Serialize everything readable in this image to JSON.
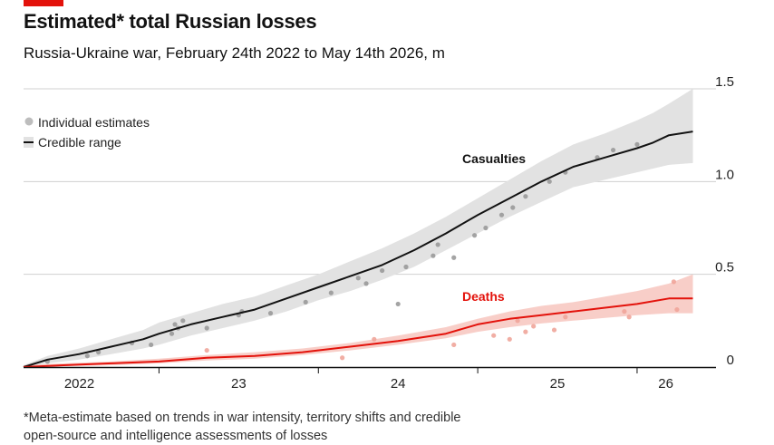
{
  "header": {
    "title": "Estimated* total Russian losses",
    "subtitle": "Russia-Ukraine war, February 24th 2022 to May 14th 2026, m"
  },
  "footnote": "*Meta-estimate based on trends in war intensity, territory shifts and credible open-source and intelligence assessments of losses",
  "colors": {
    "accent": "#e3120b",
    "casualties": "#121212",
    "deaths": "#e3120b",
    "casualties_band": "#e2e2e2",
    "deaths_band": "#f7c6be",
    "estimate_dot": "#9a9a9a",
    "deaths_dot": "#f0a59a"
  },
  "legend": {
    "estimates": "Individual estimates",
    "range": "Credible range"
  },
  "chart_data": {
    "type": "line",
    "title": "Estimated* total Russian losses",
    "subtitle": "Russia-Ukraine war, February 24th 2022 to May 14th 2026, m",
    "x_unit": "year",
    "xlim": [
      2022.15,
      2026.37
    ],
    "ylim": [
      0,
      1.5
    ],
    "y_ticks": [
      "0",
      "0.5",
      "1.0",
      "1.5"
    ],
    "y_tick_values": [
      0,
      0.5,
      1.0,
      1.5
    ],
    "y_axis_side": "right",
    "x_ticks": [
      "2022",
      "23",
      "24",
      "25",
      "26"
    ],
    "x_tick_values": [
      2022.5,
      2023.5,
      2024.5,
      2025.5,
      2026.18
    ],
    "grid": "horizontal",
    "legend_position": "top-left",
    "series": [
      {
        "name": "Casualties",
        "x": [
          2022.15,
          2022.3,
          2022.5,
          2022.7,
          2022.9,
          2023.0,
          2023.2,
          2023.4,
          2023.6,
          2023.8,
          2024.0,
          2024.2,
          2024.4,
          2024.6,
          2024.8,
          2025.0,
          2025.2,
          2025.4,
          2025.6,
          2025.8,
          2026.0,
          2026.1,
          2026.2,
          2026.35
        ],
        "y": [
          0.0,
          0.04,
          0.07,
          0.11,
          0.15,
          0.18,
          0.23,
          0.27,
          0.31,
          0.37,
          0.43,
          0.49,
          0.55,
          0.63,
          0.72,
          0.82,
          0.91,
          1.0,
          1.08,
          1.13,
          1.18,
          1.21,
          1.25,
          1.27
        ],
        "lower": [
          0.0,
          0.02,
          0.04,
          0.07,
          0.1,
          0.12,
          0.17,
          0.21,
          0.25,
          0.3,
          0.36,
          0.41,
          0.47,
          0.54,
          0.63,
          0.72,
          0.81,
          0.89,
          0.97,
          1.01,
          1.05,
          1.07,
          1.09,
          1.1
        ],
        "upper": [
          0.01,
          0.06,
          0.1,
          0.15,
          0.2,
          0.24,
          0.29,
          0.34,
          0.38,
          0.44,
          0.5,
          0.57,
          0.64,
          0.72,
          0.81,
          0.91,
          1.01,
          1.11,
          1.2,
          1.26,
          1.33,
          1.37,
          1.42,
          1.5
        ]
      },
      {
        "name": "Deaths",
        "x": [
          2022.15,
          2022.4,
          2022.7,
          2023.0,
          2023.3,
          2023.6,
          2023.9,
          2024.2,
          2024.5,
          2024.8,
          2025.0,
          2025.2,
          2025.4,
          2025.6,
          2025.8,
          2026.0,
          2026.2,
          2026.35
        ],
        "y": [
          0.0,
          0.01,
          0.02,
          0.03,
          0.05,
          0.06,
          0.08,
          0.11,
          0.14,
          0.18,
          0.23,
          0.26,
          0.28,
          0.3,
          0.32,
          0.34,
          0.37,
          0.37
        ],
        "lower": [
          0.0,
          0.005,
          0.01,
          0.02,
          0.035,
          0.045,
          0.065,
          0.09,
          0.12,
          0.155,
          0.19,
          0.215,
          0.235,
          0.25,
          0.265,
          0.28,
          0.29,
          0.29
        ],
        "upper": [
          0.01,
          0.02,
          0.03,
          0.045,
          0.065,
          0.08,
          0.1,
          0.13,
          0.17,
          0.215,
          0.26,
          0.3,
          0.33,
          0.35,
          0.38,
          0.41,
          0.45,
          0.5
        ]
      }
    ],
    "estimates": [
      {
        "series": "Casualties",
        "x": 2022.3,
        "y": 0.03
      },
      {
        "series": "Casualties",
        "x": 2022.55,
        "y": 0.06
      },
      {
        "series": "Casualties",
        "x": 2022.62,
        "y": 0.08
      },
      {
        "series": "Casualties",
        "x": 2022.83,
        "y": 0.13
      },
      {
        "series": "Casualties",
        "x": 2022.95,
        "y": 0.12
      },
      {
        "series": "Casualties",
        "x": 2023.08,
        "y": 0.18
      },
      {
        "series": "Casualties",
        "x": 2023.12,
        "y": 0.21
      },
      {
        "series": "Casualties",
        "x": 2023.15,
        "y": 0.25
      },
      {
        "series": "Casualties",
        "x": 2023.1,
        "y": 0.23
      },
      {
        "series": "Casualties",
        "x": 2023.3,
        "y": 0.21
      },
      {
        "series": "Casualties",
        "x": 2023.5,
        "y": 0.28
      },
      {
        "series": "Casualties",
        "x": 2023.52,
        "y": 0.3
      },
      {
        "series": "Casualties",
        "x": 2023.7,
        "y": 0.29
      },
      {
        "series": "Casualties",
        "x": 2023.92,
        "y": 0.35
      },
      {
        "series": "Casualties",
        "x": 2024.08,
        "y": 0.4
      },
      {
        "series": "Casualties",
        "x": 2024.25,
        "y": 0.48
      },
      {
        "series": "Casualties",
        "x": 2024.3,
        "y": 0.45
      },
      {
        "series": "Casualties",
        "x": 2024.4,
        "y": 0.52
      },
      {
        "series": "Casualties",
        "x": 2024.5,
        "y": 0.34
      },
      {
        "series": "Casualties",
        "x": 2024.55,
        "y": 0.54
      },
      {
        "series": "Casualties",
        "x": 2024.72,
        "y": 0.6
      },
      {
        "series": "Casualties",
        "x": 2024.75,
        "y": 0.66
      },
      {
        "series": "Casualties",
        "x": 2024.85,
        "y": 0.59
      },
      {
        "series": "Casualties",
        "x": 2024.98,
        "y": 0.71
      },
      {
        "series": "Casualties",
        "x": 2025.05,
        "y": 0.75
      },
      {
        "series": "Casualties",
        "x": 2025.15,
        "y": 0.82
      },
      {
        "series": "Casualties",
        "x": 2025.22,
        "y": 0.86
      },
      {
        "series": "Casualties",
        "x": 2025.3,
        "y": 0.92
      },
      {
        "series": "Casualties",
        "x": 2025.45,
        "y": 1.0
      },
      {
        "series": "Casualties",
        "x": 2025.55,
        "y": 1.05
      },
      {
        "series": "Casualties",
        "x": 2025.75,
        "y": 1.13
      },
      {
        "series": "Casualties",
        "x": 2025.85,
        "y": 1.17
      },
      {
        "series": "Casualties",
        "x": 2026.0,
        "y": 1.2
      },
      {
        "series": "Deaths",
        "x": 2023.3,
        "y": 0.09
      },
      {
        "series": "Deaths",
        "x": 2024.15,
        "y": 0.05
      },
      {
        "series": "Deaths",
        "x": 2024.35,
        "y": 0.15
      },
      {
        "series": "Deaths",
        "x": 2024.85,
        "y": 0.12
      },
      {
        "series": "Deaths",
        "x": 2025.1,
        "y": 0.17
      },
      {
        "series": "Deaths",
        "x": 2025.2,
        "y": 0.15
      },
      {
        "series": "Deaths",
        "x": 2025.25,
        "y": 0.25
      },
      {
        "series": "Deaths",
        "x": 2025.3,
        "y": 0.19
      },
      {
        "series": "Deaths",
        "x": 2025.35,
        "y": 0.22
      },
      {
        "series": "Deaths",
        "x": 2025.48,
        "y": 0.2
      },
      {
        "series": "Deaths",
        "x": 2025.55,
        "y": 0.27
      },
      {
        "series": "Deaths",
        "x": 2025.92,
        "y": 0.3
      },
      {
        "series": "Deaths",
        "x": 2025.95,
        "y": 0.27
      },
      {
        "series": "Deaths",
        "x": 2026.23,
        "y": 0.46
      },
      {
        "series": "Deaths",
        "x": 2026.25,
        "y": 0.31
      }
    ],
    "annotations": [
      "Casualties",
      "Deaths"
    ]
  }
}
